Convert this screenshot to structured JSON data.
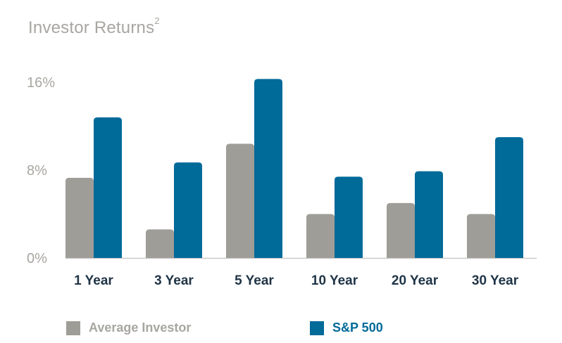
{
  "title": "Investor Returns",
  "title_sup": "2",
  "colors": {
    "average_investor": "#9f9d97",
    "sp500": "#006a99",
    "axis": "#c9c9c9",
    "tick_text": "#a8a6a1",
    "category_text": "#1f3446"
  },
  "chart_data": {
    "type": "bar",
    "categories": [
      "1 Year",
      "3 Year",
      "5 Year",
      "10 Year",
      "20 Year",
      "30 Year"
    ],
    "series": [
      {
        "name": "Average Investor",
        "values": [
          7.3,
          2.6,
          10.4,
          4.0,
          5.0,
          4.0
        ]
      },
      {
        "name": "S&P 500",
        "values": [
          12.8,
          8.7,
          16.3,
          7.4,
          7.9,
          11.0
        ]
      }
    ],
    "yticks": [
      "0%",
      "8%",
      "16%"
    ],
    "ytick_values": [
      0,
      8,
      16
    ],
    "ylim": [
      0,
      16
    ],
    "legend": [
      "Average Investor",
      "S&P 500"
    ],
    "legend_position": "bottom",
    "grid": false
  }
}
